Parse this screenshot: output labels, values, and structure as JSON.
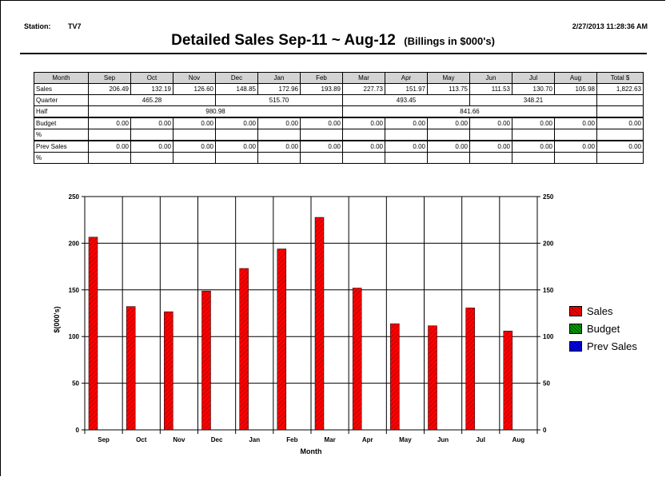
{
  "header": {
    "station_label": "Station:",
    "station_value": "TV7",
    "timestamp": "2/27/2013 11:28:36 AM",
    "title": "Detailed Sales  Sep-11 ~ Aug-12",
    "subtitle": "(Billings in $000's)"
  },
  "table": {
    "header_label": "Month",
    "months": [
      "Sep",
      "Oct",
      "Nov",
      "Dec",
      "Jan",
      "Feb",
      "Mar",
      "Apr",
      "May",
      "Jun",
      "Jul",
      "Aug"
    ],
    "total_label": "Total $",
    "sales": {
      "label": "Sales",
      "values": [
        "206.49",
        "132.19",
        "126.60",
        "148.85",
        "172.96",
        "193.89",
        "227.73",
        "151.97",
        "113.75",
        "111.53",
        "130.70",
        "105.98"
      ],
      "total": "1,822.63"
    },
    "quarter": {
      "label": "Quarter",
      "values": [
        "465.28",
        "515.70",
        "493.45",
        "348.21"
      ]
    },
    "half": {
      "label": "Half",
      "values": [
        "980.98",
        "841.66"
      ]
    },
    "budget": {
      "label": "Budget",
      "values": [
        "0.00",
        "0.00",
        "0.00",
        "0.00",
        "0.00",
        "0.00",
        "0.00",
        "0.00",
        "0.00",
        "0.00",
        "0.00",
        "0.00"
      ],
      "total": "0.00"
    },
    "budget_pct_label": "%",
    "prev": {
      "label": "Prev Sales",
      "values": [
        "0.00",
        "0.00",
        "0.00",
        "0.00",
        "0.00",
        "0.00",
        "0.00",
        "0.00",
        "0.00",
        "0.00",
        "0.00",
        "0.00"
      ],
      "total": "0.00"
    },
    "prev_pct_label": "%"
  },
  "chart_data": {
    "type": "bar",
    "categories": [
      "Sep",
      "Oct",
      "Nov",
      "Dec",
      "Jan",
      "Feb",
      "Mar",
      "Apr",
      "May",
      "Jun",
      "Jul",
      "Aug"
    ],
    "series": [
      {
        "name": "Sales",
        "color": "#ff0000",
        "values": [
          206.49,
          132.19,
          126.6,
          148.85,
          172.96,
          193.89,
          227.73,
          151.97,
          113.75,
          111.53,
          130.7,
          105.98
        ]
      },
      {
        "name": "Budget",
        "color": "#00a000",
        "values": [
          0,
          0,
          0,
          0,
          0,
          0,
          0,
          0,
          0,
          0,
          0,
          0
        ]
      },
      {
        "name": "Prev Sales",
        "color": "#0000ff",
        "values": [
          0,
          0,
          0,
          0,
          0,
          0,
          0,
          0,
          0,
          0,
          0,
          0
        ]
      }
    ],
    "xlabel": "Month",
    "ylabel": "$(000's)",
    "ylim": [
      0,
      250
    ],
    "yticks": [
      0,
      50,
      100,
      150,
      200,
      250
    ],
    "grid": true,
    "legend": "right"
  }
}
